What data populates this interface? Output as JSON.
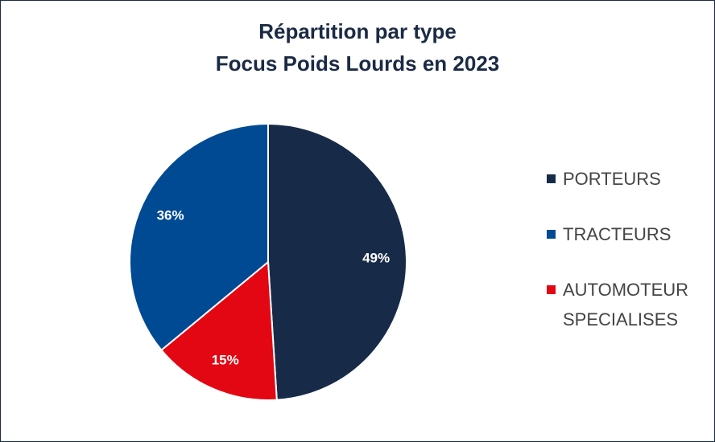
{
  "chart_data": {
    "type": "pie",
    "title_line1": "Répartition par type",
    "title_line2": "Focus Poids Lourds en 2023",
    "slices": [
      {
        "name": "PORTEURS",
        "value": 49,
        "label": "49%",
        "color": "#172b49"
      },
      {
        "name": "AUTOMOTEUR\nSPECIALISES",
        "value": 15,
        "label": "15%",
        "color": "#e30613"
      },
      {
        "name": "TRACTEURS",
        "value": 36,
        "label": "36%",
        "color": "#004a93"
      }
    ],
    "legend": [
      {
        "label": "PORTEURS",
        "color": "#172b49"
      },
      {
        "label": "TRACTEURS",
        "color": "#004a93"
      },
      {
        "label": "AUTOMOTEUR\nSPECIALISES",
        "color": "#e30613"
      }
    ],
    "legend_position": "right"
  }
}
